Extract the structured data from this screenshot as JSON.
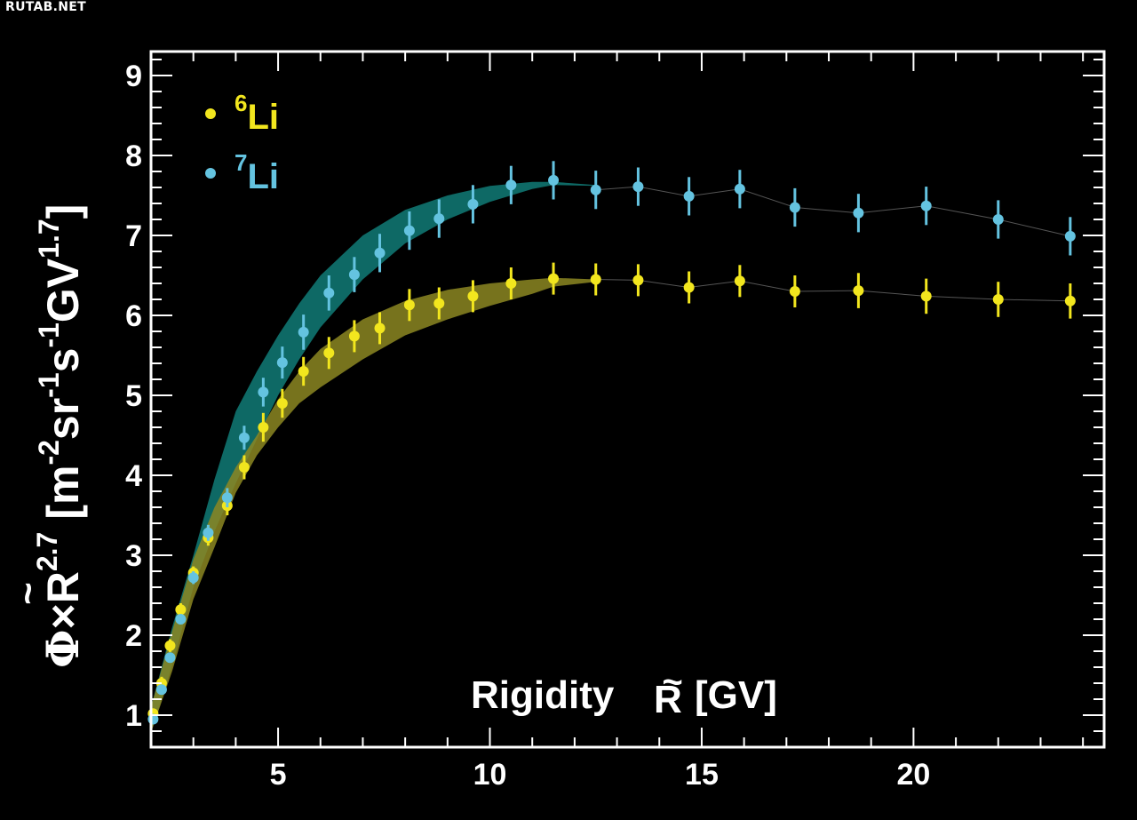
{
  "watermark": "RUTAB.NET",
  "chart_data": {
    "type": "scatter",
    "xlabel_main": "Rigidity",
    "xlabel_var": "R",
    "xlabel_unit": "[GV]",
    "ylabel_prefix": "Φ×R",
    "ylabel_exp": "2.7",
    "ylabel_unit": "[m-2sr-1s-1GV1.7]",
    "xlim": [
      2.0,
      24.5
    ],
    "ylim": [
      0.6,
      9.3
    ],
    "xticks": [
      5,
      10,
      15,
      20
    ],
    "yticks": [
      1,
      2,
      3,
      4,
      5,
      6,
      7,
      8,
      9
    ],
    "grid": false,
    "legend_position": "top-left",
    "series": [
      {
        "name": "Li",
        "isotope_mass": "6",
        "color": "#f2e61e",
        "band_color": "#8c8722",
        "x": [
          2.05,
          2.25,
          2.45,
          2.7,
          3.0,
          3.35,
          3.8,
          4.2,
          4.65,
          5.1,
          5.6,
          6.2,
          6.8,
          7.4,
          8.1,
          8.8,
          9.6,
          10.5,
          11.5,
          12.5,
          13.5,
          14.7,
          15.9,
          17.2,
          18.7,
          20.3,
          22.0,
          23.7
        ],
        "y": [
          1.02,
          1.4,
          1.87,
          2.32,
          2.78,
          3.22,
          3.62,
          4.1,
          4.6,
          4.9,
          5.3,
          5.53,
          5.74,
          5.84,
          6.13,
          6.15,
          6.24,
          6.4,
          6.46,
          6.45,
          6.44,
          6.35,
          6.43,
          6.3,
          6.31,
          6.24,
          6.2,
          6.18
        ],
        "yerr": [
          0.06,
          0.08,
          0.08,
          0.08,
          0.08,
          0.1,
          0.12,
          0.15,
          0.18,
          0.18,
          0.18,
          0.2,
          0.2,
          0.2,
          0.2,
          0.2,
          0.2,
          0.2,
          0.2,
          0.2,
          0.2,
          0.2,
          0.2,
          0.2,
          0.22,
          0.22,
          0.22,
          0.22
        ],
        "band_x": [
          2.0,
          2.5,
          3.0,
          3.5,
          4.0,
          4.5,
          5.0,
          5.5,
          6.0,
          7.0,
          8.0,
          9.0,
          10.0,
          11.0,
          11.5,
          12.5
        ],
        "band_low": [
          0.78,
          1.55,
          2.45,
          3.1,
          3.78,
          4.25,
          4.6,
          4.9,
          5.1,
          5.45,
          5.75,
          5.95,
          6.12,
          6.27,
          6.36,
          6.42
        ],
        "band_high": [
          1.1,
          2.05,
          2.95,
          3.6,
          4.1,
          4.5,
          4.95,
          5.3,
          5.58,
          5.95,
          6.18,
          6.32,
          6.4,
          6.45,
          6.47,
          6.45
        ]
      },
      {
        "name": "Li",
        "isotope_mass": "7",
        "color": "#64c3e0",
        "band_color": "#0f6f6a",
        "x": [
          2.05,
          2.25,
          2.45,
          2.7,
          3.0,
          3.35,
          3.8,
          4.2,
          4.65,
          5.1,
          5.6,
          6.2,
          6.8,
          7.4,
          8.1,
          8.8,
          9.6,
          10.5,
          11.5,
          12.5,
          13.5,
          14.7,
          15.9,
          17.2,
          18.7,
          20.3,
          22.0,
          23.7
        ],
        "y": [
          0.95,
          1.32,
          1.72,
          2.2,
          2.72,
          3.28,
          3.72,
          4.47,
          5.04,
          5.41,
          5.79,
          6.28,
          6.51,
          6.78,
          7.06,
          7.21,
          7.39,
          7.63,
          7.69,
          7.57,
          7.61,
          7.49,
          7.58,
          7.35,
          7.28,
          7.37,
          7.2,
          6.99
        ],
        "yerr": [
          0.05,
          0.06,
          0.06,
          0.06,
          0.08,
          0.1,
          0.12,
          0.15,
          0.18,
          0.2,
          0.22,
          0.22,
          0.22,
          0.24,
          0.24,
          0.24,
          0.24,
          0.24,
          0.24,
          0.24,
          0.24,
          0.24,
          0.24,
          0.24,
          0.24,
          0.24,
          0.24,
          0.24
        ],
        "band_x": [
          2.0,
          2.5,
          3.0,
          3.5,
          4.0,
          4.5,
          5.0,
          5.5,
          6.0,
          7.0,
          8.0,
          9.0,
          10.0,
          11.0,
          11.5,
          12.5
        ],
        "band_low": [
          0.78,
          1.62,
          2.6,
          3.3,
          3.9,
          4.45,
          5.0,
          5.45,
          5.85,
          6.45,
          6.9,
          7.2,
          7.42,
          7.58,
          7.63,
          7.62
        ],
        "band_high": [
          1.1,
          2.1,
          3.0,
          3.95,
          4.8,
          5.3,
          5.75,
          6.15,
          6.5,
          7.0,
          7.32,
          7.5,
          7.62,
          7.67,
          7.67,
          7.63
        ]
      }
    ]
  }
}
